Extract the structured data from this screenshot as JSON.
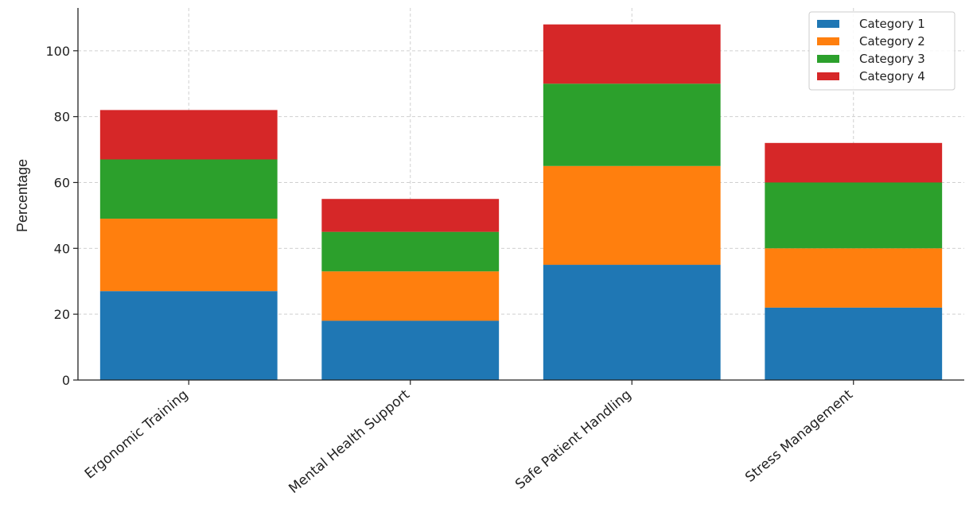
{
  "chart_data": {
    "type": "bar",
    "stacked": true,
    "title": "",
    "xlabel": "",
    "ylabel": "Percentage",
    "ylim": [
      0,
      113
    ],
    "yticks": [
      0,
      20,
      40,
      60,
      80,
      100
    ],
    "grid": true,
    "legend_position": "top-right",
    "categories": [
      "Ergonomic Training",
      "Mental Health Support",
      "Safe Patient Handling",
      "Stress Management"
    ],
    "series": [
      {
        "name": "Category 1",
        "color": "#1f77b4",
        "values": [
          27,
          18,
          35,
          22
        ]
      },
      {
        "name": "Category 2",
        "color": "#ff7f0e",
        "values": [
          22,
          15,
          30,
          18
        ]
      },
      {
        "name": "Category 3",
        "color": "#2ca02c",
        "values": [
          18,
          12,
          25,
          20
        ]
      },
      {
        "name": "Category 4",
        "color": "#d62728",
        "values": [
          15,
          10,
          18,
          12
        ]
      }
    ]
  }
}
